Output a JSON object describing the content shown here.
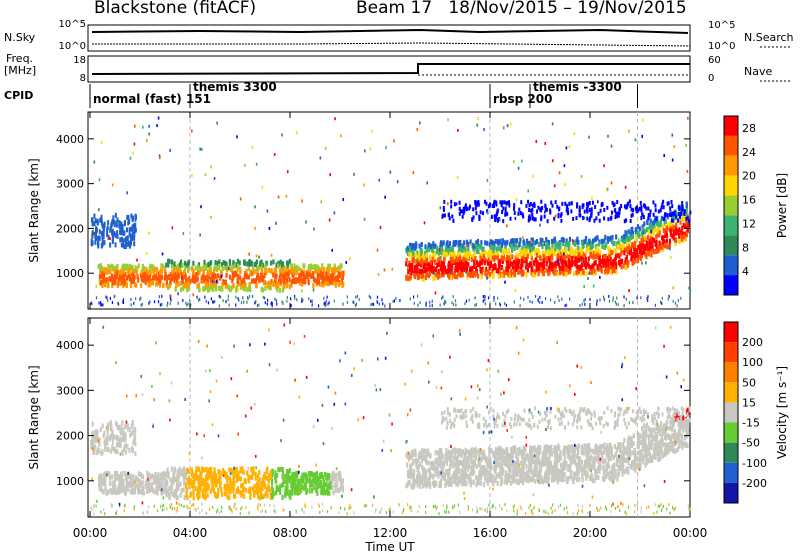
{
  "header": {
    "title": "Blackstone (fitACF)",
    "beam": "Beam 17",
    "date_range": "18/Nov/2015 – 19/Nov/2015"
  },
  "panels": {
    "nsky": {
      "label": "N.Sky",
      "ticks": [
        "10^5",
        "10^0"
      ]
    },
    "nsearch": {
      "label": "N.Search",
      "ticks": [
        "10^5",
        "10^0"
      ]
    },
    "freq": {
      "label_line1": "Freq.",
      "label_line2": "[MHz]",
      "ticks": [
        "18",
        "8"
      ]
    },
    "nave": {
      "label": "Nave",
      "ticks": [
        "60",
        "0"
      ]
    },
    "cpid": {
      "label": "CPID",
      "segments": [
        {
          "name": "normal (fast) 151",
          "start_hour": 0.0
        },
        {
          "name": "themis 3300",
          "start_hour": 4.0
        },
        {
          "name": "rbsp 200",
          "start_hour": 16.0
        },
        {
          "name": "themis -3300",
          "start_hour": 17.6
        }
      ]
    }
  },
  "chart_data": [
    {
      "type": "heatmap",
      "name": "Power",
      "ylabel": "Slant Range [km]",
      "xlim_hours": [
        0,
        24
      ],
      "ylim_km": [
        200,
        4600
      ],
      "y_ticks": [
        1000,
        2000,
        3000,
        4000
      ],
      "colorbar": {
        "label": "Power [dB]",
        "ticks": [
          4,
          8,
          12,
          16,
          20,
          24,
          28
        ],
        "range": [
          0,
          30
        ],
        "colors": [
          "#0000ff",
          "#1f5fd0",
          "#2e8b57",
          "#3cb371",
          "#9acd32",
          "#ffd700",
          "#ff9900",
          "#ff5500",
          "#ff0000"
        ]
      }
    },
    {
      "type": "heatmap",
      "name": "Velocity",
      "ylabel": "Slant Range [km]",
      "xlabel": "Time UT",
      "xlim_hours": [
        0,
        24
      ],
      "ylim_km": [
        200,
        4600
      ],
      "y_ticks": [
        1000,
        2000,
        3000,
        4000
      ],
      "x_ticks": [
        "00:00",
        "04:00",
        "08:00",
        "12:00",
        "16:00",
        "20:00",
        "00:00"
      ],
      "colorbar": {
        "label": "Velocity [m s⁻¹]",
        "ticks": [
          200,
          100,
          50,
          15,
          -15,
          -50,
          -100,
          -200
        ],
        "colors": [
          "#1515a8",
          "#2060d0",
          "#2e8b57",
          "#66cc33",
          "#c8c8c0",
          "#ffb000",
          "#ff8000",
          "#ff4000",
          "#ff0000"
        ]
      }
    }
  ]
}
